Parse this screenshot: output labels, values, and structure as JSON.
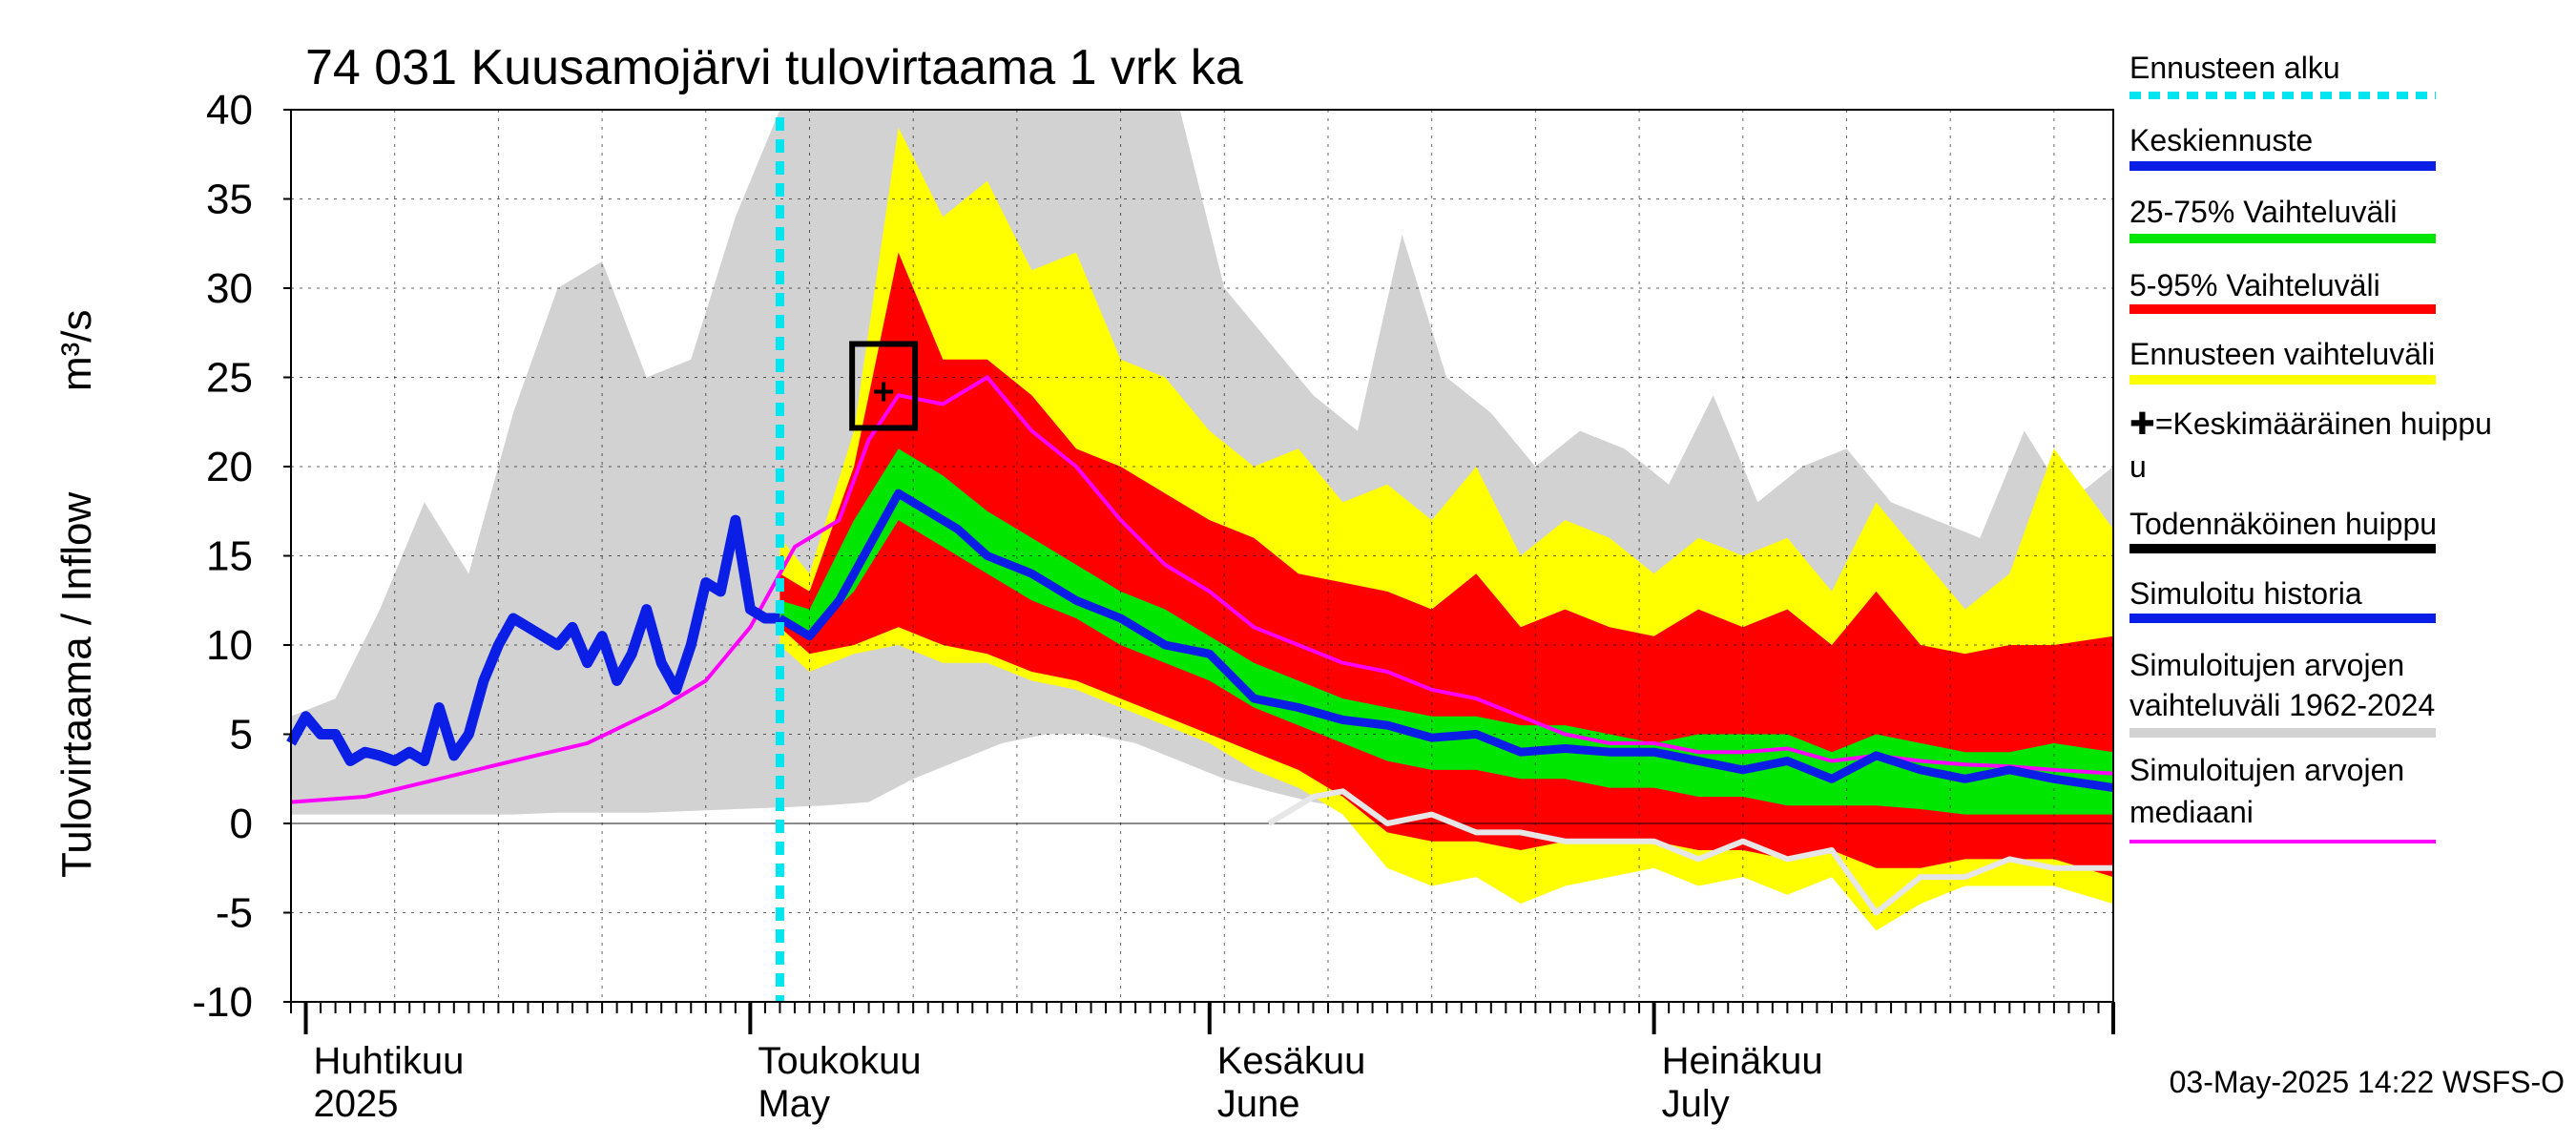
{
  "chart_data": {
    "type": "area",
    "title": "74 031 Kuusamojärvi tulovirtaama 1 vrk ka",
    "ylabel": "Tulovirtaama / Inflow",
    "yunit": "m³/s",
    "ylim": [
      -10,
      40
    ],
    "yticks": [
      -10,
      -5,
      0,
      5,
      10,
      15,
      20,
      25,
      30,
      35,
      40
    ],
    "xlim": [
      "2025-03-31",
      "2025-08-01"
    ],
    "grid": true,
    "legend_position": "right",
    "forecast_start": "2025-05-03",
    "xtick_labels": [
      {
        "date": "2025-04-01",
        "fi": "Huhtikuu",
        "en": "2025"
      },
      {
        "date": "2025-05-01",
        "fi": "Toukokuu",
        "en": "May"
      },
      {
        "date": "2025-06-01",
        "fi": "Kesäkuu",
        "en": "June"
      },
      {
        "date": "2025-07-01",
        "fi": "Heinäkuu",
        "en": "July"
      }
    ],
    "legend": [
      {
        "label": "Ennusteen alku",
        "color": "#00e5f0",
        "style": "dotted"
      },
      {
        "label": "Keskiennuste",
        "color": "#0a1ee6",
        "style": "line"
      },
      {
        "label": "25-75% Vaihteluväli",
        "color": "#00e600",
        "style": "line"
      },
      {
        "label": "5-95% Vaihteluväli",
        "color": "#ff0000",
        "style": "line"
      },
      {
        "label": "Ennusteen vaihteluväli",
        "color": "#ffff00",
        "style": "line"
      },
      {
        "label": "✚=Keskimääräinen huippu",
        "label2": "u",
        "color": "",
        "style": "none"
      },
      {
        "label": "Todennäköinen huippu",
        "color": "#000000",
        "style": "line"
      },
      {
        "label": "Simuloitu historia",
        "color": "#0a1ee6",
        "style": "line"
      },
      {
        "label": "Simuloitujen arvojen",
        "label2": "vaihteluväli 1962-2024",
        "color": "#d2d2d2",
        "style": "line"
      },
      {
        "label": "Simuloitujen arvojen",
        "label2": "mediaani",
        "color": "#ff00ff",
        "style": "line"
      }
    ],
    "peak": {
      "date": "2025-05-10",
      "value": 24.2
    },
    "history_band": {
      "x": [
        "2025-03-31",
        "2025-04-03",
        "2025-04-06",
        "2025-04-09",
        "2025-04-12",
        "2025-04-15",
        "2025-04-18",
        "2025-04-21",
        "2025-04-24",
        "2025-04-27",
        "2025-04-30",
        "2025-05-03",
        "2025-05-06",
        "2025-05-09",
        "2025-05-12",
        "2025-05-15",
        "2025-05-18",
        "2025-05-21",
        "2025-05-24",
        "2025-05-27",
        "2025-05-30",
        "2025-06-02",
        "2025-06-05",
        "2025-06-08",
        "2025-06-11",
        "2025-06-14",
        "2025-06-17",
        "2025-06-20",
        "2025-06-23",
        "2025-06-26",
        "2025-06-29",
        "2025-07-02",
        "2025-07-05",
        "2025-07-08",
        "2025-07-11",
        "2025-07-14",
        "2025-07-17",
        "2025-07-20",
        "2025-07-23",
        "2025-07-26",
        "2025-07-29",
        "2025-08-01"
      ],
      "low": [
        0.5,
        0.5,
        0.5,
        0.5,
        0.5,
        0.5,
        0.6,
        0.6,
        0.6,
        0.7,
        0.8,
        0.9,
        1.0,
        1.2,
        2.5,
        3.5,
        4.5,
        5.0,
        5.0,
        4.5,
        3.5,
        2.5,
        1.8,
        1.2,
        0.8,
        0.5,
        0.3,
        0.2,
        0.1,
        0.0,
        0.0,
        0.0,
        -0.1,
        -0.2,
        -0.3,
        -0.5,
        -0.5,
        -0.6,
        -0.7,
        -0.8,
        -0.9,
        -1.0
      ],
      "high": [
        6.0,
        7.0,
        12.0,
        18.0,
        14.0,
        23.0,
        30.0,
        31.5,
        25.0,
        26.0,
        34.0,
        40.0,
        40.0,
        40.0,
        40.0,
        40.0,
        40.0,
        40.0,
        40.0,
        40.0,
        40.0,
        30.0,
        27.0,
        24.0,
        22.0,
        33.0,
        25.0,
        23.0,
        20.0,
        22.0,
        21.0,
        19.0,
        24.0,
        18.0,
        20.0,
        21.0,
        18.0,
        17.0,
        16.0,
        22.0,
        18.0,
        20.0
      ]
    },
    "forecast_bands": {
      "x": [
        "2025-05-03",
        "2025-05-05",
        "2025-05-08",
        "2025-05-11",
        "2025-05-14",
        "2025-05-17",
        "2025-05-20",
        "2025-05-23",
        "2025-05-26",
        "2025-05-29",
        "2025-06-01",
        "2025-06-04",
        "2025-06-07",
        "2025-06-10",
        "2025-06-13",
        "2025-06-16",
        "2025-06-19",
        "2025-06-22",
        "2025-06-25",
        "2025-06-28",
        "2025-07-01",
        "2025-07-04",
        "2025-07-07",
        "2025-07-10",
        "2025-07-13",
        "2025-07-16",
        "2025-07-19",
        "2025-07-22",
        "2025-07-25",
        "2025-07-28",
        "2025-08-01"
      ],
      "outer_low": [
        10.0,
        8.5,
        9.5,
        10.0,
        9.0,
        9.0,
        8.0,
        7.5,
        6.5,
        5.5,
        4.5,
        3.0,
        2.0,
        0.5,
        -2.5,
        -3.5,
        -3.0,
        -4.5,
        -3.5,
        -3.0,
        -2.5,
        -3.5,
        -3.0,
        -4.0,
        -3.0,
        -6.0,
        -4.5,
        -3.5,
        -3.5,
        -3.5,
        -4.5
      ],
      "outer_high": [
        16.0,
        14.0,
        22.0,
        39.0,
        34.0,
        36.0,
        31.0,
        32.0,
        26.0,
        25.0,
        22.0,
        20.0,
        21.0,
        18.0,
        19.0,
        17.0,
        20.0,
        15.0,
        17.0,
        16.0,
        14.0,
        16.0,
        15.0,
        16.0,
        13.0,
        18.0,
        15.0,
        12.0,
        14.0,
        21.0,
        16.5
      ],
      "q5": [
        11.0,
        9.5,
        10.0,
        11.0,
        10.0,
        9.5,
        8.5,
        8.0,
        7.0,
        6.0,
        5.0,
        4.0,
        3.0,
        1.5,
        -0.5,
        -1.0,
        -1.0,
        -1.5,
        -1.0,
        -1.0,
        -1.0,
        -1.5,
        -1.5,
        -2.0,
        -1.5,
        -2.5,
        -2.5,
        -2.0,
        -2.0,
        -2.0,
        -3.0
      ],
      "q95": [
        14.0,
        13.0,
        20.0,
        32.0,
        26.0,
        26.0,
        24.0,
        21.0,
        20.0,
        18.5,
        17.0,
        16.0,
        14.0,
        13.5,
        13.0,
        12.0,
        14.0,
        11.0,
        12.0,
        11.0,
        10.5,
        12.0,
        11.0,
        12.0,
        10.0,
        13.0,
        10.0,
        9.5,
        10.0,
        10.0,
        10.5
      ],
      "q25": [
        11.5,
        10.5,
        13.0,
        17.0,
        15.5,
        14.0,
        12.5,
        11.5,
        10.0,
        9.0,
        8.0,
        6.5,
        5.5,
        4.5,
        3.5,
        3.0,
        3.0,
        2.5,
        2.5,
        2.0,
        2.0,
        1.5,
        1.5,
        1.0,
        1.0,
        1.0,
        0.8,
        0.5,
        0.5,
        0.5,
        0.5
      ],
      "q75": [
        12.5,
        12.0,
        17.0,
        21.0,
        19.5,
        17.5,
        16.0,
        14.5,
        13.0,
        12.0,
        10.5,
        9.0,
        8.0,
        7.0,
        6.5,
        6.0,
        6.0,
        5.5,
        5.5,
        5.0,
        4.5,
        5.0,
        5.0,
        5.0,
        4.0,
        5.0,
        4.5,
        4.0,
        4.0,
        4.5,
        4.0
      ]
    },
    "mean_forecast": {
      "x": [
        "2025-05-03",
        "2025-05-05",
        "2025-05-07",
        "2025-05-09",
        "2025-05-11",
        "2025-05-13",
        "2025-05-15",
        "2025-05-17",
        "2025-05-20",
        "2025-05-23",
        "2025-05-26",
        "2025-05-29",
        "2025-06-01",
        "2025-06-04",
        "2025-06-07",
        "2025-06-10",
        "2025-06-13",
        "2025-06-16",
        "2025-06-19",
        "2025-06-22",
        "2025-06-25",
        "2025-06-28",
        "2025-07-01",
        "2025-07-04",
        "2025-07-07",
        "2025-07-10",
        "2025-07-13",
        "2025-07-16",
        "2025-07-19",
        "2025-07-22",
        "2025-07-25",
        "2025-07-28",
        "2025-08-01"
      ],
      "values": [
        11.5,
        10.5,
        12.5,
        15.5,
        18.5,
        17.5,
        16.5,
        15.0,
        14.0,
        12.5,
        11.5,
        10.0,
        9.5,
        7.0,
        6.5,
        5.8,
        5.5,
        4.8,
        5.0,
        4.0,
        4.2,
        4.0,
        4.0,
        3.5,
        3.0,
        3.5,
        2.5,
        3.8,
        3.0,
        2.5,
        3.0,
        2.5,
        2.0
      ]
    },
    "simulated_history": {
      "x": [
        "2025-03-31",
        "2025-04-01",
        "2025-04-02",
        "2025-04-03",
        "2025-04-04",
        "2025-04-05",
        "2025-04-06",
        "2025-04-07",
        "2025-04-08",
        "2025-04-09",
        "2025-04-10",
        "2025-04-11",
        "2025-04-12",
        "2025-04-13",
        "2025-04-14",
        "2025-04-15",
        "2025-04-16",
        "2025-04-17",
        "2025-04-18",
        "2025-04-19",
        "2025-04-20",
        "2025-04-21",
        "2025-04-22",
        "2025-04-23",
        "2025-04-24",
        "2025-04-25",
        "2025-04-26",
        "2025-04-27",
        "2025-04-28",
        "2025-04-29",
        "2025-04-30",
        "2025-05-01",
        "2025-05-02",
        "2025-05-03"
      ],
      "values": [
        4.5,
        6.0,
        5.0,
        5.0,
        3.5,
        4.0,
        3.8,
        3.5,
        4.0,
        3.5,
        6.5,
        3.8,
        5.0,
        8.0,
        10.0,
        11.5,
        11.0,
        10.5,
        10.0,
        11.0,
        9.0,
        10.5,
        8.0,
        9.5,
        12.0,
        9.0,
        7.5,
        10.0,
        13.5,
        13.0,
        17.0,
        12.0,
        11.5,
        11.5
      ]
    },
    "history_median": {
      "x": [
        "2025-03-31",
        "2025-04-05",
        "2025-04-10",
        "2025-04-15",
        "2025-04-20",
        "2025-04-25",
        "2025-04-28",
        "2025-05-01",
        "2025-05-04",
        "2025-05-07",
        "2025-05-09",
        "2025-05-11",
        "2025-05-14",
        "2025-05-17",
        "2025-05-20",
        "2025-05-23",
        "2025-05-26",
        "2025-05-29",
        "2025-06-01",
        "2025-06-04",
        "2025-06-07",
        "2025-06-10",
        "2025-06-13",
        "2025-06-16",
        "2025-06-19",
        "2025-06-22",
        "2025-06-25",
        "2025-06-28",
        "2025-07-01",
        "2025-07-04",
        "2025-07-07",
        "2025-07-10",
        "2025-07-13",
        "2025-07-16",
        "2025-07-19",
        "2025-07-22",
        "2025-07-25",
        "2025-07-28",
        "2025-08-01"
      ],
      "values": [
        1.2,
        1.5,
        2.5,
        3.5,
        4.5,
        6.5,
        8.0,
        11.0,
        15.5,
        17.0,
        21.5,
        24.0,
        23.5,
        25.0,
        22.0,
        20.0,
        17.0,
        14.5,
        13.0,
        11.0,
        10.0,
        9.0,
        8.5,
        7.5,
        7.0,
        6.0,
        5.0,
        4.5,
        4.5,
        4.0,
        4.0,
        4.2,
        3.5,
        3.8,
        3.5,
        3.3,
        3.2,
        3.0,
        2.8
      ]
    },
    "history_min_line": {
      "x": [
        "2025-06-05",
        "2025-06-08",
        "2025-06-10",
        "2025-06-13",
        "2025-06-16",
        "2025-06-19",
        "2025-06-22",
        "2025-06-25",
        "2025-06-28",
        "2025-07-01",
        "2025-07-04",
        "2025-07-07",
        "2025-07-10",
        "2025-07-13",
        "2025-07-16",
        "2025-07-19",
        "2025-07-22",
        "2025-07-25",
        "2025-07-28",
        "2025-08-01"
      ],
      "values": [
        0.0,
        1.5,
        1.8,
        0.0,
        0.5,
        -0.5,
        -0.5,
        -1.0,
        -1.0,
        -1.0,
        -2.0,
        -1.0,
        -2.0,
        -1.5,
        -5.0,
        -3.0,
        -3.0,
        -2.0,
        -2.5,
        -2.5
      ]
    },
    "timestamp": "03-May-2025 14:22 WSFS-O"
  }
}
